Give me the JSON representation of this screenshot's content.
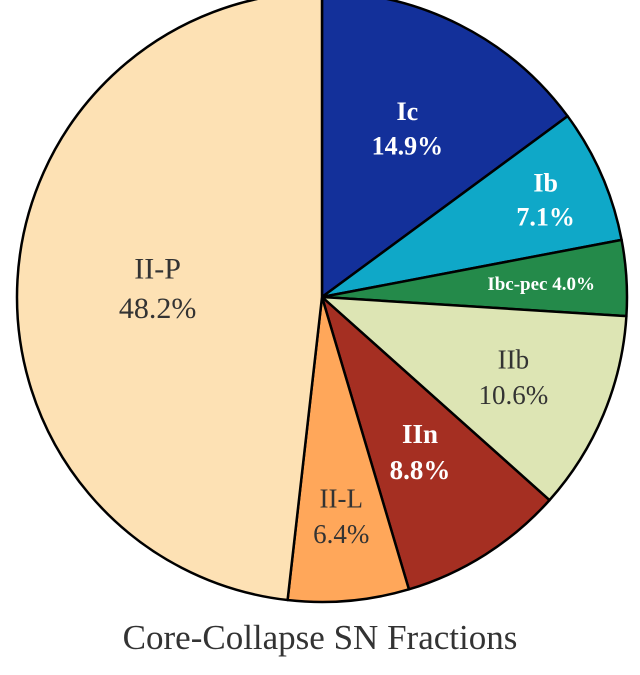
{
  "chart_data": {
    "type": "pie",
    "title": "Core-Collapse SN Fractions",
    "slices": [
      {
        "label": "Ic",
        "value": 14.9,
        "value_text": "14.9%",
        "color": "#13309a",
        "text_color": "#ffffff",
        "bold": true,
        "inline": false
      },
      {
        "label": "Ib",
        "value": 7.1,
        "value_text": "7.1%",
        "color": "#0fa8c8",
        "text_color": "#ffffff",
        "bold": true,
        "inline": false
      },
      {
        "label": "Ibc-pec",
        "value": 4.0,
        "value_text": "4.0%",
        "color": "#248a4a",
        "text_color": "#ffffff",
        "bold": true,
        "inline": true
      },
      {
        "label": "IIb",
        "value": 10.6,
        "value_text": "10.6%",
        "color": "#dde5b4",
        "text_color": "#333333",
        "bold": false,
        "inline": false
      },
      {
        "label": "IIn",
        "value": 8.8,
        "value_text": "8.8%",
        "color": "#a52f22",
        "text_color": "#ffffff",
        "bold": true,
        "inline": false
      },
      {
        "label": "II-L",
        "value": 6.4,
        "value_text": "6.4%",
        "color": "#ffa75a",
        "text_color": "#333333",
        "bold": false,
        "inline": false
      },
      {
        "label": "II-P",
        "value": 48.2,
        "value_text": "48.2%",
        "color": "#fde1b4",
        "text_color": "#333333",
        "bold": false,
        "inline": false
      }
    ],
    "start_angle_deg": 0,
    "direction": "clockwise"
  }
}
